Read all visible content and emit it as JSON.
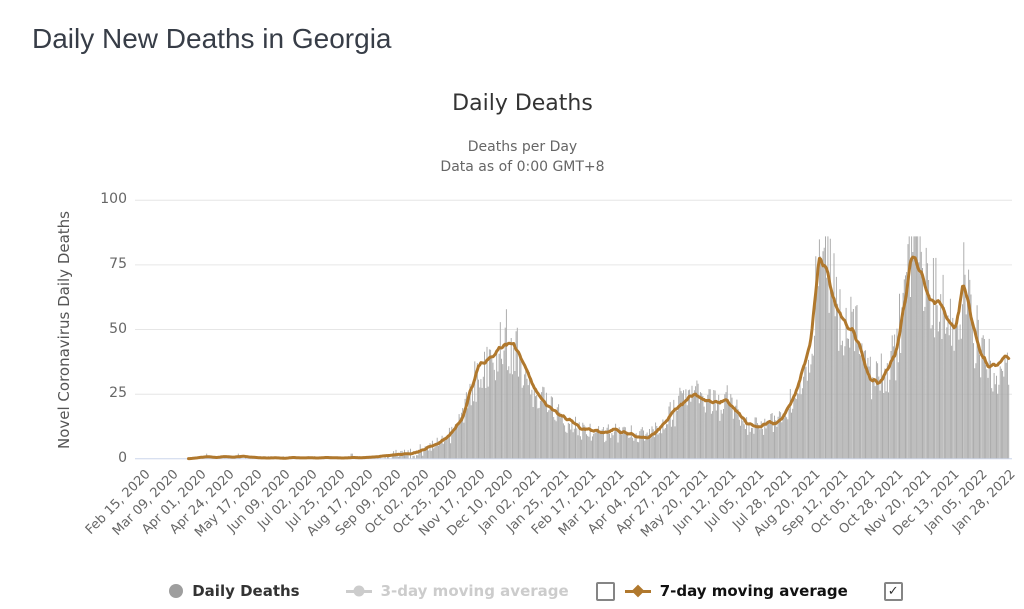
{
  "page": {
    "title": "Daily New Deaths in Georgia"
  },
  "colors": {
    "bars": "#a9a9a9",
    "ma7_line": "#b0782d",
    "grid_line": "#e6e6e6",
    "axis_line": "#ccd6eb",
    "chart_title": "#333333",
    "subtitle": "#666666",
    "tick_label": "#666666",
    "page_title": "#373d47",
    "legend_disabled": "#cccccc"
  },
  "chart_data": {
    "type": "combo-column-line",
    "title": "Daily Deaths",
    "subtitle_line1": "Deaths per Day",
    "subtitle_line2": "Data as of 0:00 GMT+8",
    "ylabel": "Novel Coronavirus Daily Deaths",
    "ylim": [
      0,
      100
    ],
    "yticks": [
      0,
      25,
      50,
      75,
      100
    ],
    "grid": true,
    "x_start_date": "2020-02-15",
    "x_end_date": "2022-02-01",
    "x_tick_interval_days": 23,
    "x_tick_labels": [
      "Feb 15, 2020",
      "Mar 09, 2020",
      "Apr 01, 2020",
      "Apr 24, 2020",
      "May 17, 2020",
      "Jun 09, 2020",
      "Jul 02, 2020",
      "Jul 25, 2020",
      "Aug 17, 2020",
      "Sep 09, 2020",
      "Oct 02, 2020",
      "Oct 25, 2020",
      "Nov 17, 2020",
      "Dec 10, 2020",
      "Jan 02, 2021",
      "Jan 25, 2021",
      "Feb 17, 2021",
      "Mar 12, 2021",
      "Apr 04, 2021",
      "Apr 27, 2021",
      "May 20, 2021",
      "Jun 12, 2021",
      "Jul 05, 2021",
      "Jul 28, 2021",
      "Aug 20, 2021",
      "Sep 12, 2021",
      "Oct 05, 2021",
      "Oct 28, 2021",
      "Nov 20, 2021",
      "Dec 13, 2021",
      "Jan 05, 2022",
      "Jan 28, 2022"
    ],
    "series": [
      {
        "name": "Daily Deaths",
        "type": "column",
        "color": "#a9a9a9",
        "visible": true,
        "description": "Daily reported deaths: noisy columns scattered roughly ±28% around the 7-day moving average; near zero Feb-Sep 2020, winter 2020-21 wave peaking ~45-52, delta wave peaking ~80-85 around 1 Sep 2021, second peak ~80-85 mid Nov 2021, third peak ~70 late Dec 2021, ~40 at end Jan 2022"
      },
      {
        "name": "3-day moving average",
        "type": "line",
        "color": "#cccccc",
        "visible": false
      },
      {
        "name": "7-day moving average",
        "type": "line",
        "color": "#b0782d",
        "visible": true,
        "sampling": "weekly samples starting 2020-02-15, step 7 days",
        "values": [
          0,
          0,
          0,
          0,
          0,
          0,
          0.1,
          0.5,
          0.8,
          0.5,
          0.9,
          0.6,
          1,
          0.7,
          0.4,
          0.3,
          0.4,
          0.2,
          0.5,
          0.3,
          0.4,
          0.3,
          0.5,
          0.4,
          0.3,
          0.5,
          0.4,
          0.6,
          0.8,
          1.2,
          1.5,
          1.8,
          2.2,
          3,
          4.5,
          6,
          8,
          11,
          16,
          27,
          37,
          37.5,
          41,
          45,
          44.5,
          38,
          30,
          24,
          21,
          18,
          16,
          14,
          11.5,
          11,
          10.5,
          10.5,
          11,
          10,
          9.5,
          8.5,
          8.5,
          11,
          15,
          19,
          22,
          25,
          24,
          22,
          21.5,
          22.5,
          19,
          15.5,
          13,
          12,
          14.5,
          13.5,
          18,
          24,
          34,
          45,
          78,
          72,
          58,
          52,
          50,
          41,
          31,
          30,
          34,
          41,
          60,
          80,
          70,
          62,
          61,
          54,
          50,
          68,
          53,
          40,
          36,
          35.5,
          39.5
        ]
      }
    ]
  },
  "legend": {
    "checkmark_glyph": "✓",
    "items": [
      {
        "label": "Daily Deaths",
        "marker": "circle",
        "color": "#9e9e9e",
        "enabled": true
      },
      {
        "label": "3-day moving average",
        "marker": "line-circle",
        "color": "#cccccc",
        "enabled": false,
        "checkbox_checked": false
      },
      {
        "label": "7-day moving average",
        "marker": "line-diamond",
        "color": "#b0782d",
        "enabled": true,
        "checkbox_checked": true
      }
    ]
  }
}
